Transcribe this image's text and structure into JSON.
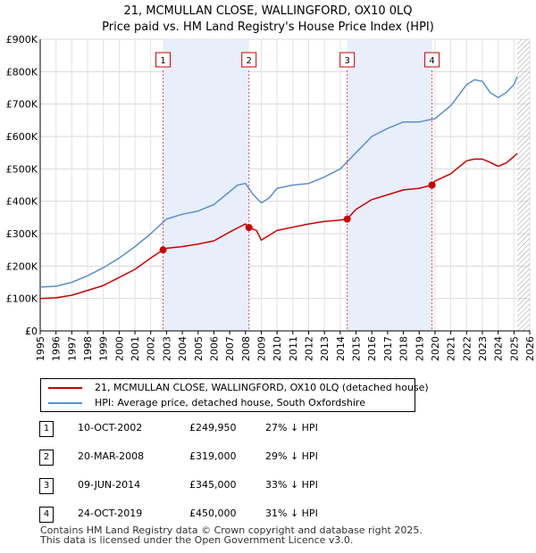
{
  "chart_data": {
    "type": "line",
    "title": "21, MCMULLAN CLOSE, WALLINGFORD, OX10 0LQ",
    "subtitle": "Price paid vs. HM Land Registry's House Price Index (HPI)",
    "xlim": [
      1995,
      2026
    ],
    "ylim": [
      0,
      900000
    ],
    "x_ticks": [
      "1995",
      "1996",
      "1997",
      "1998",
      "1999",
      "2000",
      "2001",
      "2002",
      "2003",
      "2004",
      "2005",
      "2006",
      "2007",
      "2008",
      "2009",
      "2010",
      "2011",
      "2012",
      "2013",
      "2014",
      "2015",
      "2016",
      "2017",
      "2018",
      "2019",
      "2020",
      "2021",
      "2022",
      "2023",
      "2024",
      "2025",
      "2026"
    ],
    "y_ticks": [
      {
        "label": "£0",
        "value": 0
      },
      {
        "label": "£100K",
        "value": 100000
      },
      {
        "label": "£200K",
        "value": 200000
      },
      {
        "label": "£300K",
        "value": 300000
      },
      {
        "label": "£400K",
        "value": 400000
      },
      {
        "label": "£500K",
        "value": 500000
      },
      {
        "label": "£600K",
        "value": 600000
      },
      {
        "label": "£700K",
        "value": 700000
      },
      {
        "label": "£800K",
        "value": 800000
      },
      {
        "label": "£900K",
        "value": 900000
      }
    ],
    "shaded_periods": [
      [
        2002.78,
        2008.22
      ],
      [
        2014.44,
        2019.81
      ]
    ],
    "future_hatch_from": 2025.2,
    "series": [
      {
        "name": "21, MCMULLAN CLOSE, WALLINGFORD, OX10 0LQ (detached house)",
        "color": "#cc0000",
        "x": [
          1995,
          1996,
          1997,
          1998,
          1999,
          2000,
          2001,
          2002,
          2002.78,
          2003,
          2004,
          2005,
          2006,
          2007,
          2007.5,
          2008,
          2008.22,
          2008.7,
          2009,
          2009.5,
          2010,
          2011,
          2012,
          2013,
          2014,
          2014.44,
          2015,
          2016,
          2017,
          2018,
          2019,
          2019.81,
          2020,
          2021,
          2022,
          2022.5,
          2023,
          2023.5,
          2024,
          2024.5,
          2025,
          2025.2
        ],
        "y": [
          100000,
          102000,
          110000,
          125000,
          140000,
          165000,
          190000,
          225000,
          249950,
          255000,
          260000,
          268000,
          278000,
          305000,
          318000,
          330000,
          319000,
          310000,
          280000,
          295000,
          310000,
          320000,
          330000,
          338000,
          342000,
          345000,
          375000,
          405000,
          420000,
          435000,
          440000,
          450000,
          462000,
          485000,
          525000,
          530000,
          530000,
          520000,
          508000,
          518000,
          538000,
          548000
        ]
      },
      {
        "name": "HPI: Average price, detached house, South Oxfordshire",
        "color": "#5b8fcf",
        "x": [
          1995,
          1996,
          1997,
          1998,
          1999,
          2000,
          2001,
          2002,
          2003,
          2004,
          2005,
          2006,
          2007,
          2007.5,
          2008,
          2008.5,
          2009,
          2009.5,
          2010,
          2011,
          2012,
          2013,
          2014,
          2015,
          2016,
          2017,
          2018,
          2019,
          2020,
          2021,
          2022,
          2022.5,
          2023,
          2023.5,
          2024,
          2024.5,
          2025,
          2025.2
        ],
        "y": [
          135000,
          138000,
          150000,
          170000,
          195000,
          225000,
          260000,
          300000,
          345000,
          360000,
          370000,
          390000,
          430000,
          450000,
          455000,
          420000,
          395000,
          410000,
          440000,
          450000,
          455000,
          475000,
          500000,
          550000,
          600000,
          625000,
          645000,
          645000,
          655000,
          695000,
          760000,
          775000,
          770000,
          735000,
          720000,
          735000,
          760000,
          785000
        ]
      }
    ],
    "transactions": [
      {
        "num": "1",
        "x": 2002.78,
        "price": 249950
      },
      {
        "num": "2",
        "x": 2008.22,
        "price": 319000
      },
      {
        "num": "3",
        "x": 2014.44,
        "price": 345000
      },
      {
        "num": "4",
        "x": 2019.81,
        "price": 450000
      }
    ]
  },
  "legend": {
    "items": [
      {
        "label": "21, MCMULLAN CLOSE, WALLINGFORD, OX10 0LQ (detached house)",
        "color": "#cc0000"
      },
      {
        "label": "HPI: Average price, detached house, South Oxfordshire",
        "color": "#5b8fcf"
      }
    ]
  },
  "table": {
    "rows": [
      {
        "num": "1",
        "date": "10-OCT-2002",
        "price": "£249,950",
        "delta": "27% ↓ HPI"
      },
      {
        "num": "2",
        "date": "20-MAR-2008",
        "price": "£319,000",
        "delta": "29% ↓ HPI"
      },
      {
        "num": "3",
        "date": "09-JUN-2014",
        "price": "£345,000",
        "delta": "33% ↓ HPI"
      },
      {
        "num": "4",
        "date": "24-OCT-2019",
        "price": "£450,000",
        "delta": "31% ↓ HPI"
      }
    ]
  },
  "footer": {
    "line1": "Contains HM Land Registry data © Crown copyright and database right 2025.",
    "line2": "This data is licensed under the Open Government Licence v3.0."
  }
}
